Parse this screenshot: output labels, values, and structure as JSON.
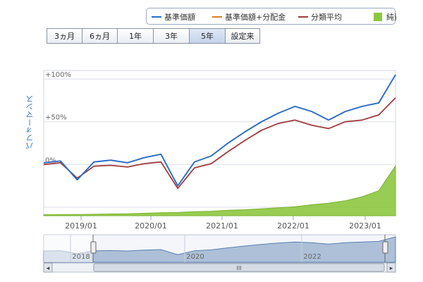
{
  "legend": {
    "items": [
      {
        "label": "基準価額",
        "color": "#1f6fd6",
        "kind": "line"
      },
      {
        "label": "基準価額+分配金",
        "color": "#e07b22",
        "kind": "line"
      },
      {
        "label": "分類平均",
        "color": "#a23a3a",
        "kind": "line"
      },
      {
        "label": "純資産",
        "color": "#8dc63f",
        "kind": "area"
      }
    ]
  },
  "range_buttons": [
    {
      "label": "3ヵ月",
      "active": false
    },
    {
      "label": "6ヵ月",
      "active": false
    },
    {
      "label": "1年",
      "active": false
    },
    {
      "label": "3年",
      "active": false
    },
    {
      "label": "5年",
      "active": true
    },
    {
      "label": "設定来",
      "active": false
    }
  ],
  "yaxis_title": "パフォーマンス",
  "navigator": {
    "year_labels": [
      "2018",
      "2020",
      "2022"
    ],
    "scroll_left": "◂",
    "scroll_right": "▸",
    "grip": "III"
  },
  "chart_data": {
    "type": "line",
    "x_dates": [
      "2018-06",
      "2018-09",
      "2018-12",
      "2019-03",
      "2019-06",
      "2019-09",
      "2019-12",
      "2020-02",
      "2020-03",
      "2020-06",
      "2020-09",
      "2020-12",
      "2021-03",
      "2021-06",
      "2021-09",
      "2021-12",
      "2022-03",
      "2022-06",
      "2022-09",
      "2022-12",
      "2023-03",
      "2023-06"
    ],
    "x_tick_labels": [
      "2019/01",
      "2020/01",
      "2021/01",
      "2022/01",
      "2023/01"
    ],
    "y_tick_labels": [
      "+100%",
      "+50%",
      "0%"
    ],
    "series": [
      {
        "name": "基準価額",
        "color": "#1f6fd6",
        "values": [
          2,
          4,
          -18,
          3,
          5,
          2,
          8,
          12,
          -25,
          3,
          10,
          25,
          38,
          50,
          60,
          68,
          62,
          52,
          62,
          68,
          72,
          105
        ]
      },
      {
        "name": "基準価額+分配金",
        "color": "#e07b22",
        "values": [
          2,
          4,
          -18,
          3,
          5,
          2,
          8,
          12,
          -25,
          3,
          10,
          25,
          38,
          50,
          60,
          68,
          62,
          52,
          62,
          68,
          72,
          105
        ]
      },
      {
        "name": "分類平均",
        "color": "#a23a3a",
        "values": [
          0,
          2,
          -16,
          -2,
          -1,
          -3,
          1,
          3,
          -28,
          -4,
          1,
          15,
          28,
          40,
          48,
          52,
          46,
          42,
          50,
          52,
          58,
          78
        ]
      },
      {
        "name": "純資産",
        "color": "#8dc63f",
        "kind": "area",
        "values": [
          2,
          2.2,
          2.5,
          3,
          3.5,
          4,
          5,
          6,
          6.5,
          8,
          9,
          11,
          12,
          14,
          16,
          18,
          22,
          25,
          30,
          38,
          50,
          100
        ]
      }
    ],
    "ylim": [
      -60,
      110
    ],
    "grid": true
  }
}
